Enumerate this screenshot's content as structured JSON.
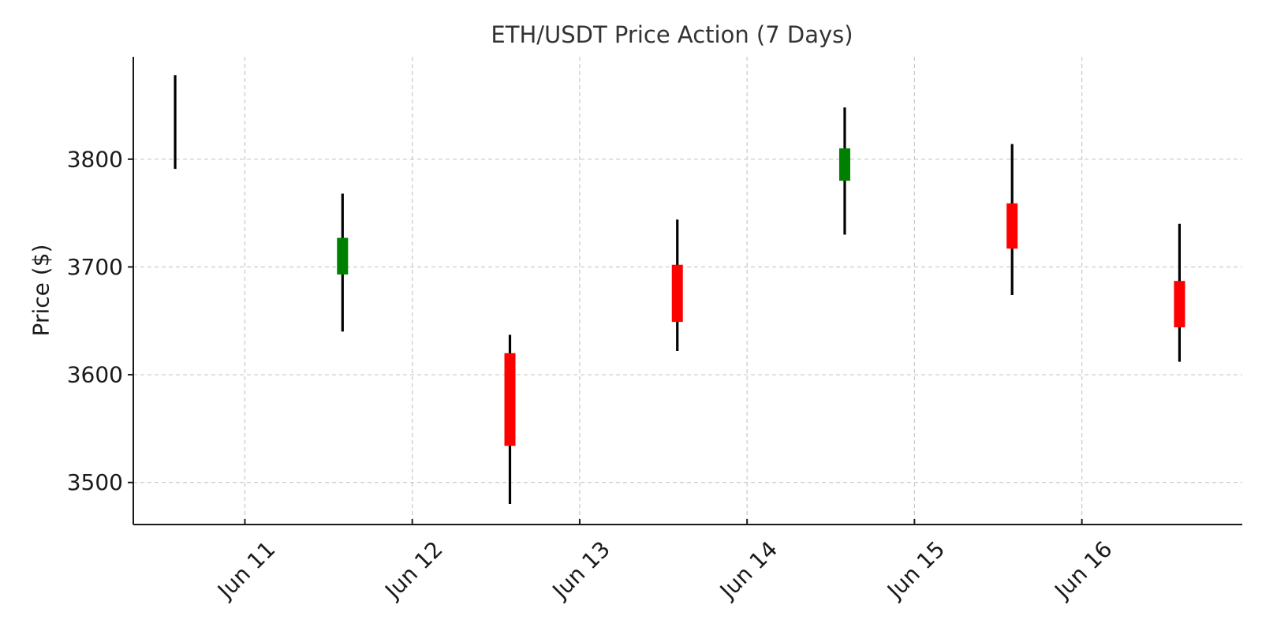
{
  "chart_data": {
    "type": "candlestick",
    "title": "ETH/USDT Price Action (7 Days)",
    "xlabel": "",
    "ylabel": "Price ($)",
    "ylim": [
      3461,
      3895
    ],
    "xlim": [
      "2024-06-10T08:00",
      "2024-06-16T23:00"
    ],
    "yticks": [
      3500,
      3600,
      3700,
      3800
    ],
    "ytick_labels": [
      "3500",
      "3600",
      "3700",
      "3800"
    ],
    "xticks": [
      "2024-06-11",
      "2024-06-12",
      "2024-06-13",
      "2024-06-14",
      "2024-06-15",
      "2024-06-16"
    ],
    "xtick_labels": [
      "Jun 11",
      "Jun 12",
      "Jun 13",
      "Jun 14",
      "Jun 15",
      "Jun 16"
    ],
    "grid": true,
    "colors": {
      "up": "#008000",
      "down": "#ff0000",
      "wick": "#000000"
    },
    "candles": [
      {
        "date": "2024-06-10T14:00",
        "open": 3795,
        "high": 3878,
        "low": 3791,
        "close": 3795
      },
      {
        "date": "2024-06-11T14:00",
        "open": 3693,
        "high": 3768,
        "low": 3640,
        "close": 3727
      },
      {
        "date": "2024-06-12T14:00",
        "open": 3620,
        "high": 3637,
        "low": 3480,
        "close": 3534
      },
      {
        "date": "2024-06-13T14:00",
        "open": 3702,
        "high": 3744,
        "low": 3622,
        "close": 3649
      },
      {
        "date": "2024-06-14T14:00",
        "open": 3780,
        "high": 3848,
        "low": 3730,
        "close": 3810
      },
      {
        "date": "2024-06-15T14:00",
        "open": 3759,
        "high": 3814,
        "low": 3674,
        "close": 3717
      },
      {
        "date": "2024-06-16T14:00",
        "open": 3687,
        "high": 3740,
        "low": 3612,
        "close": 3644
      }
    ]
  }
}
